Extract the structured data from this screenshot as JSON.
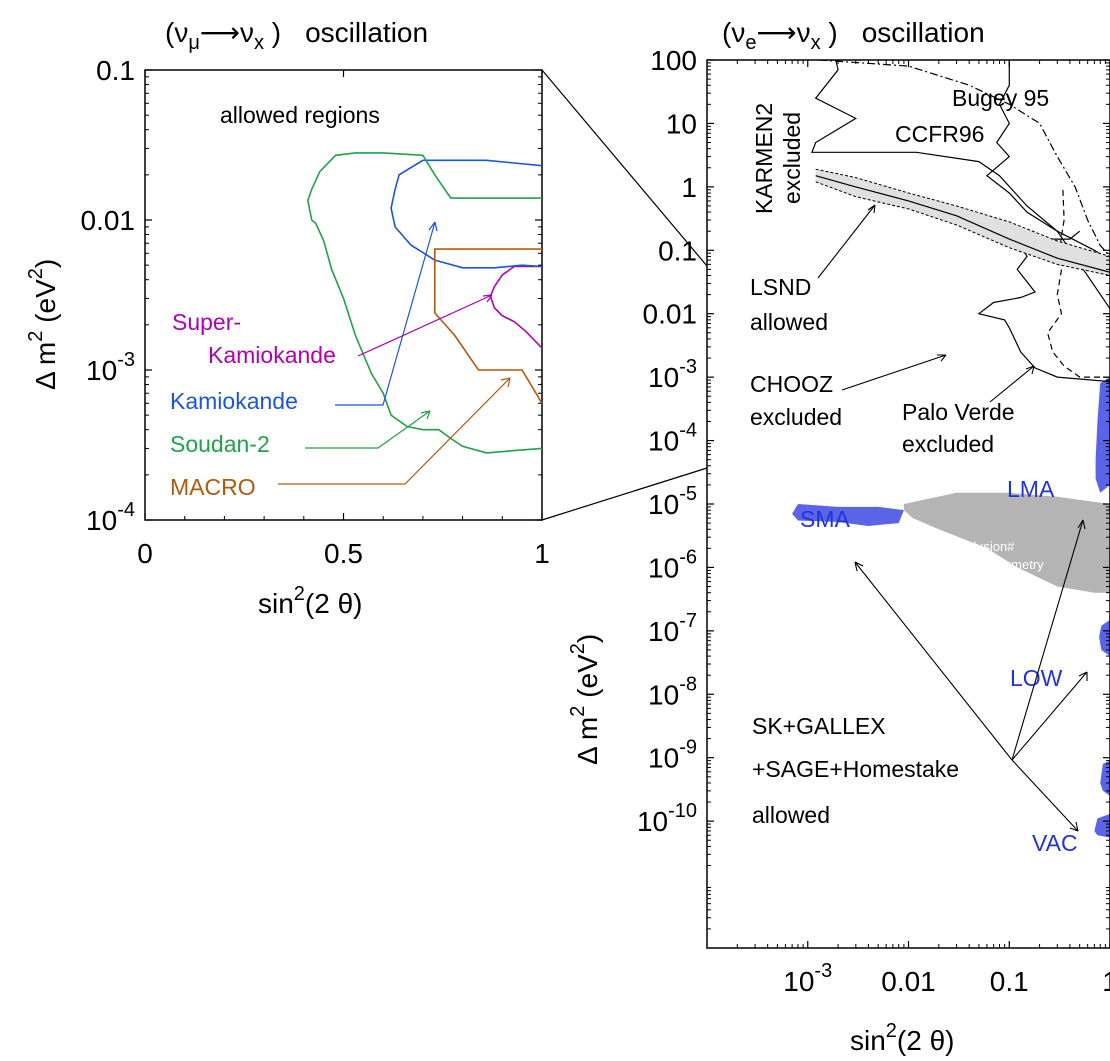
{
  "chart_data": [
    {
      "type": "line",
      "title": {
        "open": "(",
        "nu": "ν",
        "flavor": "μ",
        "arrow": "⟶",
        "nu2": "ν",
        "x": "x",
        "close": ")",
        "word": "oscillation"
      },
      "xlabel": {
        "main": "sin",
        "sup": "2",
        "rest": "(2 θ)"
      },
      "ylabel": {
        "main": "Δ m",
        "sup1": "2",
        "open": " (eV",
        "sup2": "2",
        "close": ")"
      },
      "x_scale": "linear",
      "y_scale": "log",
      "xlim": [
        0,
        1
      ],
      "ylim": [
        0.0001,
        0.1
      ],
      "x_ticks": [
        {
          "v": 0,
          "label": "0"
        },
        {
          "v": 0.5,
          "label": "0.5"
        },
        {
          "v": 1,
          "label": "1"
        }
      ],
      "y_ticks": [
        {
          "v": 0.1,
          "label": "0.1"
        },
        {
          "v": 0.01,
          "label": "0.01"
        },
        {
          "v": 0.001,
          "base": "10",
          "exp": "-3"
        },
        {
          "v": 0.0001,
          "base": "10",
          "exp": "-4"
        }
      ],
      "annotation": "allowed regions",
      "series": [
        {
          "name": "Super-Kamiokande",
          "color": "#b000b0",
          "points": [
            [
              1,
              0.0049
            ],
            [
              0.93,
              0.0049
            ],
            [
              0.9,
              0.0043
            ],
            [
              0.88,
              0.0036
            ],
            [
              0.87,
              0.0031
            ],
            [
              0.88,
              0.0026
            ],
            [
              0.9,
              0.0023
            ],
            [
              0.93,
              0.0021
            ],
            [
              0.96,
              0.0018
            ],
            [
              1,
              0.0014
            ]
          ]
        },
        {
          "name": "Kamiokande",
          "color": "#1a55e0",
          "points": [
            [
              1,
              0.023
            ],
            [
              0.93,
              0.024
            ],
            [
              0.86,
              0.025
            ],
            [
              0.7,
              0.025
            ],
            [
              0.64,
              0.02
            ],
            [
              0.63,
              0.016
            ],
            [
              0.62,
              0.012
            ],
            [
              0.63,
              0.009
            ],
            [
              0.67,
              0.0068
            ],
            [
              0.73,
              0.0054
            ],
            [
              0.8,
              0.0048
            ],
            [
              0.88,
              0.0048
            ],
            [
              0.95,
              0.005
            ],
            [
              1,
              0.0049
            ]
          ]
        },
        {
          "name": "Soudan-2",
          "color": "#22a04a",
          "points": [
            [
              1,
              0.0003
            ],
            [
              0.93,
              0.00029
            ],
            [
              0.86,
              0.00028
            ],
            [
              0.8,
              0.00031
            ],
            [
              0.77,
              0.00035
            ],
            [
              0.74,
              0.0004
            ],
            [
              0.7,
              0.0004
            ],
            [
              0.66,
              0.00042
            ],
            [
              0.62,
              0.0005
            ],
            [
              0.6,
              0.0007
            ],
            [
              0.57,
              0.00095
            ],
            [
              0.53,
              0.0017
            ],
            [
              0.5,
              0.003
            ],
            [
              0.47,
              0.0047
            ],
            [
              0.45,
              0.0073
            ],
            [
              0.43,
              0.0095
            ],
            [
              0.42,
              0.01
            ],
            [
              0.41,
              0.0135
            ],
            [
              0.42,
              0.016
            ],
            [
              0.44,
              0.021
            ],
            [
              0.48,
              0.027
            ],
            [
              0.53,
              0.028
            ],
            [
              0.6,
              0.028
            ],
            [
              0.7,
              0.027
            ],
            [
              0.73,
              0.02
            ],
            [
              0.77,
              0.014
            ],
            [
              1,
              0.014
            ]
          ]
        },
        {
          "name": "MACRO",
          "color": "#b05a10",
          "points": [
            [
              0.73,
              0.0064
            ],
            [
              1,
              0.0064
            ],
            [
              1,
              0.0064
            ],
            [
              0.73,
              0.0064
            ],
            [
              0.73,
              0.0024
            ],
            [
              0.78,
              0.0017
            ],
            [
              0.84,
              0.001
            ],
            [
              0.95,
              0.001
            ],
            [
              1,
              0.0006
            ]
          ]
        }
      ]
    },
    {
      "type": "line",
      "title": {
        "open": "(",
        "nu": "ν",
        "flavor": "e",
        "arrow": "⟶",
        "nu2": "ν",
        "x": "x",
        "close": ")",
        "word": "oscillation"
      },
      "xlabel": {
        "main": "sin",
        "sup": "2",
        "rest": "(2 θ)"
      },
      "ylabel": {
        "main": "Δ m",
        "sup1": "2",
        "open": " (eV",
        "sup2": "2",
        "close": ")"
      },
      "x_scale": "log",
      "y_scale": "log",
      "xlim": [
        0.0001,
        1
      ],
      "ylim": [
        1e-12,
        100
      ],
      "x_ticks": [
        {
          "v": 0.001,
          "base": "10",
          "exp": "-3"
        },
        {
          "v": 0.01,
          "label": "0.01"
        },
        {
          "v": 0.1,
          "label": "0.1"
        },
        {
          "v": 1,
          "label": "1"
        }
      ],
      "y_ticks": [
        {
          "v": 100,
          "label": "100"
        },
        {
          "v": 10,
          "label": "10"
        },
        {
          "v": 1,
          "label": "1"
        },
        {
          "v": 0.1,
          "label": "0.1"
        },
        {
          "v": 0.01,
          "label": "0.01"
        },
        {
          "v": 0.001,
          "base": "10",
          "exp": "-3"
        },
        {
          "v": 0.0001,
          "base": "10",
          "exp": "-4"
        },
        {
          "v": 1e-05,
          "base": "10",
          "exp": "-5"
        },
        {
          "v": 1e-06,
          "base": "10",
          "exp": "-6"
        },
        {
          "v": 1e-07,
          "base": "10",
          "exp": "-7"
        },
        {
          "v": 1e-08,
          "base": "10",
          "exp": "-8"
        },
        {
          "v": 1e-09,
          "base": "10",
          "exp": "-9"
        },
        {
          "v": 1e-10,
          "base": "10",
          "exp": "-10"
        }
      ],
      "series": [
        {
          "name": "KARMEN2",
          "color": "#000000",
          "style": "solid",
          "points": [
            [
              1,
              0.07
            ],
            [
              0.7,
              0.1
            ],
            [
              0.3,
              0.2
            ],
            [
              0.15,
              0.5
            ],
            [
              0.08,
              1.5
            ],
            [
              0.05,
              2.5
            ],
            [
              0.012,
              3.5
            ],
            [
              0.0011,
              3.5
            ],
            [
              0.0012,
              5
            ],
            [
              0.003,
              12
            ],
            [
              0.0012,
              25
            ],
            [
              0.002,
              70
            ],
            [
              0.0019,
              100
            ]
          ]
        },
        {
          "name": "Bugey 95",
          "color": "#000000",
          "style": "dashdot",
          "points": [
            [
              0.0013,
              100
            ],
            [
              0.01,
              80
            ],
            [
              0.04,
              40
            ],
            [
              0.1,
              20
            ],
            [
              0.2,
              10
            ],
            [
              0.3,
              3
            ],
            [
              0.45,
              1
            ],
            [
              0.6,
              0.3
            ],
            [
              0.8,
              0.12
            ],
            [
              1,
              0.08
            ]
          ]
        },
        {
          "name": "CCFR96",
          "color": "#000000",
          "style": "solid",
          "points": [
            [
              0.1,
              100
            ],
            [
              0.1,
              40
            ],
            [
              0.08,
              20
            ],
            [
              0.1,
              10
            ],
            [
              0.075,
              5
            ],
            [
              0.1,
              3
            ],
            [
              0.06,
              1.5
            ],
            [
              0.1,
              0.8
            ],
            [
              0.15,
              0.4
            ],
            [
              0.3,
              0.2
            ],
            [
              1,
              0.012
            ]
          ]
        },
        {
          "name": "CHOOZ",
          "color": "#000000",
          "style": "solid",
          "points": [
            [
              1,
              0.00085
            ],
            [
              0.3,
              0.001
            ],
            [
              0.18,
              0.0014
            ],
            [
              0.13,
              0.0025
            ],
            [
              0.1,
              0.006
            ],
            [
              0.09,
              0.008
            ],
            [
              0.05,
              0.01
            ],
            [
              0.07,
              0.015
            ],
            [
              0.13,
              0.018
            ],
            [
              0.18,
              0.022
            ],
            [
              0.12,
              0.05
            ],
            [
              0.15,
              0.08
            ],
            [
              0.13,
              0.12
            ],
            [
              0.25,
              0.15
            ],
            [
              0.4,
              0.15
            ],
            [
              0.5,
              0.2
            ]
          ]
        },
        {
          "name": "Palo Verde",
          "color": "#000000",
          "style": "dashed",
          "points": [
            [
              1,
              0.001
            ],
            [
              0.5,
              0.001
            ],
            [
              0.35,
              0.0015
            ],
            [
              0.27,
              0.0025
            ],
            [
              0.24,
              0.005
            ],
            [
              0.33,
              0.01
            ],
            [
              0.3,
              0.02
            ],
            [
              0.33,
              0.05
            ],
            [
              0.32,
              0.12
            ],
            [
              0.35,
              0.3
            ],
            [
              0.34,
              1
            ]
          ]
        },
        {
          "name": "LSND",
          "color": "#555555",
          "style": "band",
          "points": [
            [
              0.0012,
              1.5
            ],
            [
              0.003,
              1
            ],
            [
              0.01,
              0.6
            ],
            [
              0.03,
              0.35
            ],
            [
              0.1,
              0.15
            ],
            [
              0.3,
              0.075
            ],
            [
              1,
              0.045
            ]
          ],
          "upper": [
            [
              0.0012,
              1.9
            ],
            [
              0.003,
              1.4
            ],
            [
              0.01,
              0.8
            ],
            [
              0.03,
              0.5
            ],
            [
              0.1,
              0.28
            ],
            [
              0.3,
              0.14
            ],
            [
              1,
              0.08
            ]
          ],
          "lower": [
            [
              0.0012,
              1.2
            ],
            [
              0.003,
              0.7
            ],
            [
              0.01,
              0.45
            ],
            [
              0.03,
              0.25
            ],
            [
              0.1,
              0.11
            ],
            [
              0.3,
              0.06
            ],
            [
              1,
              0.04
            ]
          ]
        }
      ],
      "regions": [
        {
          "name": "SuperK exclusion",
          "color": "#b4b4b4",
          "points": [
            [
              0.009,
              1e-05
            ],
            [
              0.03,
              1.5e-05
            ],
            [
              0.1,
              1.5e-05
            ],
            [
              0.3,
              1.3e-05
            ],
            [
              1,
              1e-05
            ],
            [
              1,
              4e-07
            ],
            [
              0.7,
              4e-07
            ],
            [
              0.3,
              5e-07
            ],
            [
              0.12,
              1e-06
            ],
            [
              0.06,
              2e-06
            ],
            [
              0.02,
              4e-06
            ],
            [
              0.011,
              6e-06
            ],
            [
              0.009,
              8e-06
            ]
          ]
        },
        {
          "name": "SMA",
          "color": "#5a64e6",
          "points": [
            [
              0.0008,
              1e-05
            ],
            [
              0.002,
              9e-06
            ],
            [
              0.005,
              9e-06
            ],
            [
              0.009,
              8e-06
            ],
            [
              0.008,
              5e-06
            ],
            [
              0.004,
              4.5e-06
            ],
            [
              0.002,
              5.2e-06
            ],
            [
              0.0008,
              5.5e-06
            ],
            [
              0.0007,
              7e-06
            ]
          ]
        },
        {
          "name": "LMA",
          "color": "#5a64e6",
          "points": [
            [
              1,
              0.001
            ],
            [
              0.8,
              0.0008
            ],
            [
              0.75,
              0.0002
            ],
            [
              0.72,
              5e-05
            ],
            [
              0.72,
              2.5e-05
            ],
            [
              0.8,
              1.5e-05
            ],
            [
              1,
              2e-05
            ]
          ]
        },
        {
          "name": "LOW",
          "color": "#5a64e6",
          "points": [
            [
              1,
              1.5e-07
            ],
            [
              0.82,
              1.2e-07
            ],
            [
              0.78,
              8e-08
            ],
            [
              0.82,
              5e-08
            ],
            [
              1,
              4e-08
            ]
          ]
        },
        {
          "name": "VAC",
          "color": "#5a64e6",
          "points": [
            [
              1,
              9e-10
            ],
            [
              0.85,
              8e-10
            ],
            [
              0.8,
              4e-10
            ],
            [
              0.85,
              3e-10
            ],
            [
              1,
              2.5e-10
            ]
          ]
        },
        {
          "name": "VAC2",
          "color": "#5a64e6",
          "points": [
            [
              1,
              1.3e-10
            ],
            [
              0.75,
              1.1e-10
            ],
            [
              0.7,
              7e-11
            ],
            [
              0.75,
              6e-11
            ],
            [
              1,
              5.5e-11
            ]
          ]
        }
      ]
    }
  ],
  "labels": {
    "superk_l1": "Super-",
    "superk_l2": "Kamiokande",
    "kamiokande": "Kamiokande",
    "soudan2": "Soudan-2",
    "macro": "MACRO",
    "bugey": "Bugey 95",
    "ccfr": "CCFR96",
    "karmen_l1": "KARMEN2",
    "karmen_l2": "excluded",
    "lsnd_l1": "LSND",
    "lsnd_l2": "allowed",
    "chooz_l1": "CHOOZ",
    "chooz_l2": "excluded",
    "palo_l1": "Palo Verde",
    "palo_l2": "excluded",
    "lma": "LMA",
    "sma": "SMA",
    "low": "LOW",
    "vac": "VAC",
    "superk_excl_l1": "SuperK exclusion#",
    "superk_excl_l2": "day-night asymmetry",
    "solar_l1": "SK+GALLEX",
    "solar_l2": "+SAGE+Homestake",
    "solar_l3": "allowed"
  },
  "colors": {
    "superk": "#b000b0",
    "kamiokande": "#1a55e0",
    "soudan2": "#22a04a",
    "macro": "#b05a10",
    "solar_label": "#2233dd",
    "solar_fill": "#5a64e6",
    "exclusion": "#b4b4b4"
  }
}
